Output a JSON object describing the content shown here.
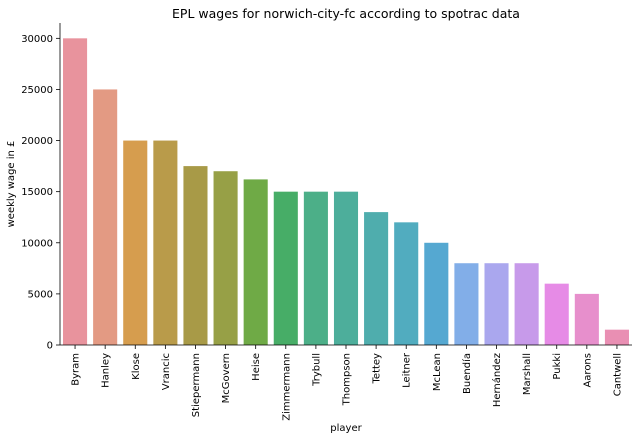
{
  "chart_data": {
    "type": "bar",
    "title": "EPL wages for norwich-city-fc according to spotrac data",
    "xlabel": "player",
    "ylabel": "weekly wage in £",
    "categories": [
      "Byram",
      "Hanley",
      "Klose",
      "Vrancic",
      "Stiepermann",
      "McGovern",
      "Heise",
      "Zimmermann",
      "Trybull",
      "Thompson",
      "Tettey",
      "Leitner",
      "McLean",
      "Buendía",
      "Hernández",
      "Marshall",
      "Pukki",
      "Aarons",
      "Cantwell"
    ],
    "values": [
      30000,
      25000,
      20000,
      20000,
      17500,
      17000,
      16200,
      15000,
      15000,
      15000,
      13000,
      12000,
      10000,
      8000,
      8000,
      8000,
      6000,
      5000,
      1500
    ],
    "ylim": [
      0,
      31500
    ],
    "yticks": [
      0,
      5000,
      10000,
      15000,
      20000,
      25000,
      30000
    ],
    "grid": false,
    "colors": [
      "#e8939d",
      "#e39a83",
      "#d69d4e",
      "#b99b4a",
      "#a89a47",
      "#97a046",
      "#6faa46",
      "#47ad67",
      "#4caf88",
      "#4dae9b",
      "#4fadad",
      "#51acbf",
      "#55a8d1",
      "#82aee8",
      "#aaa7ee",
      "#c79aea",
      "#e68be6",
      "#e78fcc",
      "#e98fb3"
    ]
  }
}
